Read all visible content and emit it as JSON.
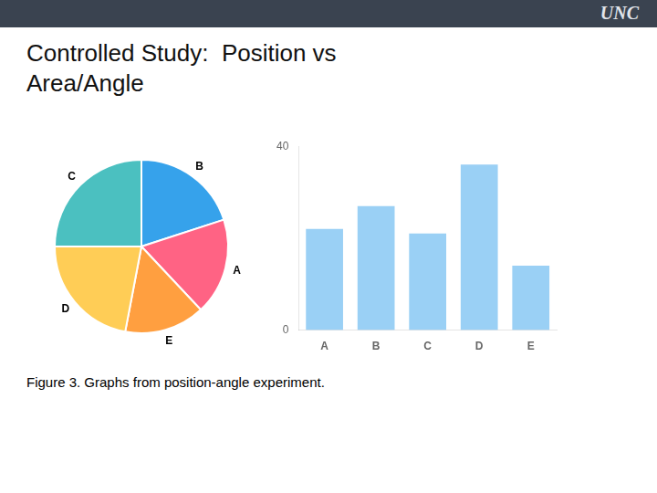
{
  "title": "Controlled Study:  Position vs\nArea/Angle",
  "annotations": [
    "UNC",
    "Figure 3. Graphs from position-angle experiment."
  ],
  "chart_data": [
    {
      "type": "pie",
      "categories": [
        "B",
        "A",
        "E",
        "D",
        "C"
      ],
      "values": [
        20,
        18,
        15,
        22,
        25
      ]
    },
    {
      "type": "bar",
      "categories": [
        "A",
        "B",
        "C",
        "D",
        "E"
      ],
      "values": [
        22,
        27,
        21,
        36,
        14
      ],
      "ylim": [
        0,
        40
      ],
      "yticks": [
        0,
        40
      ],
      "grid": false
    }
  ]
}
